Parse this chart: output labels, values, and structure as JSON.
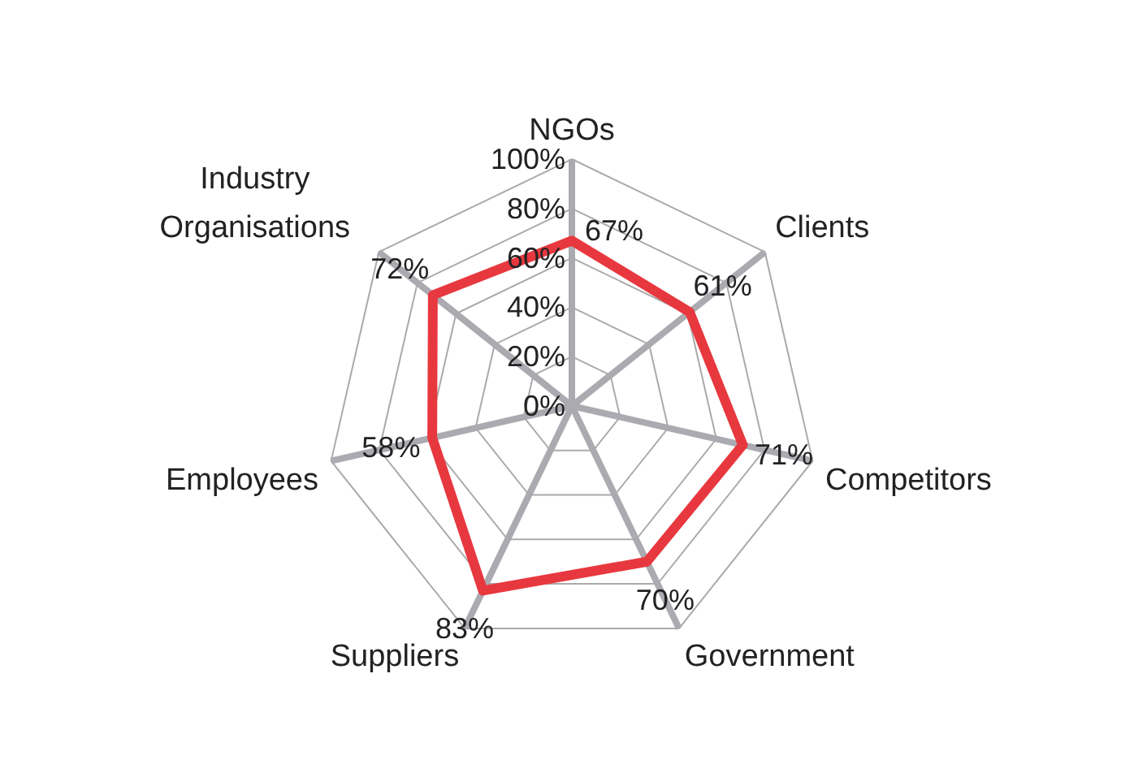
{
  "chart_data": {
    "type": "radar",
    "categories": [
      "NGOs",
      "Clients",
      "Competitors",
      "Government",
      "Suppliers",
      "Employees",
      "Industry Organisations"
    ],
    "series": [
      {
        "color": "#e8383f",
        "values": [
          67,
          61,
          71,
          70,
          83,
          58,
          72
        ],
        "value_labels": [
          "67%",
          "61%",
          "71%",
          "70%",
          "83%",
          "58%",
          "72%"
        ]
      }
    ],
    "ylim": [
      0,
      100
    ],
    "yticks": [
      {
        "value": 0,
        "label": "0%"
      },
      {
        "value": 20,
        "label": "20%"
      },
      {
        "value": 40,
        "label": "40%"
      },
      {
        "value": 60,
        "label": "60%"
      },
      {
        "value": 80,
        "label": "80%"
      },
      {
        "value": 100,
        "label": "100%"
      }
    ],
    "grid": true,
    "legend": false
  }
}
